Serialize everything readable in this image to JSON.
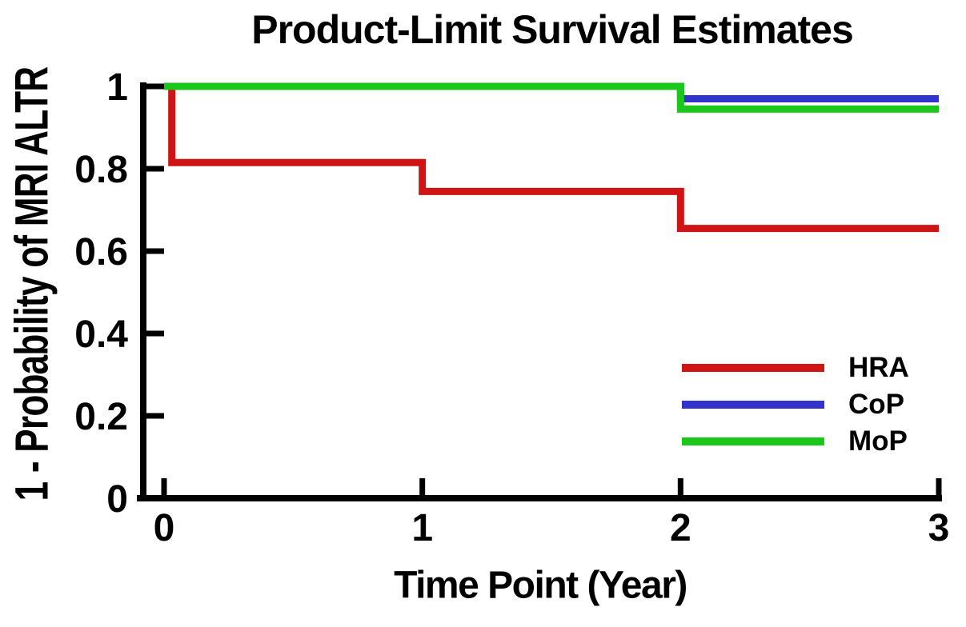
{
  "title": "Product-Limit Survival Estimates",
  "chart_data": {
    "type": "line",
    "subtype": "kaplan-meier-step",
    "title": "Product-Limit Survival Estimates",
    "xlabel": "Time Point (Year)",
    "ylabel": "1 - Probability of MRI ALTR",
    "xlim": [
      0,
      3
    ],
    "ylim": [
      0,
      1
    ],
    "x_ticks": [
      0,
      1,
      2,
      3
    ],
    "x_tick_labels": [
      "0",
      "1",
      "2",
      "3"
    ],
    "y_ticks": [
      0,
      0.2,
      0.4,
      0.6,
      0.8,
      1
    ],
    "y_tick_labels": [
      "0",
      "0.2",
      "0.4",
      "0.6",
      "0.8",
      "1"
    ],
    "grid": false,
    "legend_position": "right-middle",
    "series": [
      {
        "name": "HRA",
        "color": "#CE1414",
        "points": [
          [
            0,
            1
          ],
          [
            0.03,
            1
          ],
          [
            0.03,
            0.815
          ],
          [
            1,
            0.815
          ],
          [
            1,
            0.745
          ],
          [
            2,
            0.745
          ],
          [
            2,
            0.655
          ],
          [
            3,
            0.655
          ]
        ]
      },
      {
        "name": "CoP",
        "color": "#3232CD",
        "points": [
          [
            0,
            1
          ],
          [
            2,
            1
          ],
          [
            2,
            0.97
          ],
          [
            3,
            0.97
          ]
        ]
      },
      {
        "name": "MoP",
        "color": "#1BC71B",
        "points": [
          [
            0,
            1
          ],
          [
            2,
            1
          ],
          [
            2,
            0.945
          ],
          [
            3,
            0.945
          ]
        ]
      }
    ]
  },
  "colors": {
    "axis": "#000000",
    "background": "#FFFFFF",
    "text": "#000000"
  }
}
